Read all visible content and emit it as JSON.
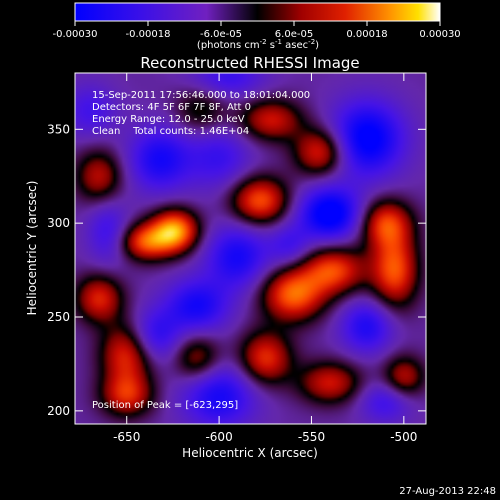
{
  "colorbar": {
    "tick_labels": [
      "-0.00030",
      "-0.00018",
      "-6.0e-05",
      "6.0e-05",
      "0.00018",
      "0.00030"
    ],
    "tick_values": [
      -0.0003,
      -0.00018,
      -6e-05,
      6e-05,
      0.00018,
      0.0003
    ],
    "range": [
      -0.0003,
      0.0003
    ],
    "units_main": "(photons cm",
    "units_sup1": "-2",
    "units_mid": " s",
    "units_sup2": "-1",
    "units_mid2": " asec",
    "units_sup3": "-2",
    "units_end": ")"
  },
  "chart_data": {
    "type": "heatmap",
    "title": "Reconstructed RHESSI Image",
    "xlabel": "Heliocentric X (arcsec)",
    "ylabel": "Heliocentric Y (arcsec)",
    "xlim": [
      -678,
      -488
    ],
    "ylim": [
      193,
      380
    ],
    "x_ticks": [
      -650,
      -600,
      -550,
      -500
    ],
    "x_tick_labels": [
      "-650",
      "-600",
      "-550",
      "-500"
    ],
    "y_ticks": [
      200,
      250,
      300,
      350
    ],
    "y_tick_labels": [
      "200",
      "250",
      "300",
      "350"
    ],
    "annotations": {
      "time": "15-Sep-2011 17:56:46.000 to 18:01:04.000",
      "detectors": "Detectors: 4F 5F 6F 7F 8F, Att 0",
      "energy": "Energy Range: 12.0 - 25.0 keV",
      "clean": "Clean    Total counts: 1.46E+04",
      "peak": "Position of Peak = [-623,295]"
    },
    "peak_position": [
      -623,
      295
    ],
    "bright_sources": [
      {
        "x": -624,
        "y": 296,
        "level": 1.0,
        "sx": 9,
        "sy": 8
      },
      {
        "x": -640,
        "y": 290,
        "level": 0.75,
        "sx": 10,
        "sy": 7
      },
      {
        "x": -578,
        "y": 312,
        "level": 0.8,
        "sx": 11,
        "sy": 9
      },
      {
        "x": -650,
        "y": 230,
        "level": 0.7,
        "sx": 10,
        "sy": 12
      },
      {
        "x": -665,
        "y": 260,
        "level": 0.65,
        "sx": 9,
        "sy": 9
      },
      {
        "x": -560,
        "y": 262,
        "level": 0.85,
        "sx": 12,
        "sy": 10
      },
      {
        "x": -538,
        "y": 275,
        "level": 0.75,
        "sx": 12,
        "sy": 9
      },
      {
        "x": -505,
        "y": 275,
        "level": 0.8,
        "sx": 9,
        "sy": 14
      },
      {
        "x": -510,
        "y": 300,
        "level": 0.7,
        "sx": 10,
        "sy": 9
      },
      {
        "x": -545,
        "y": 338,
        "level": 0.7,
        "sx": 10,
        "sy": 9
      },
      {
        "x": -572,
        "y": 355,
        "level": 0.6,
        "sx": 12,
        "sy": 8
      },
      {
        "x": -665,
        "y": 325,
        "level": 0.55,
        "sx": 9,
        "sy": 10
      },
      {
        "x": -650,
        "y": 208,
        "level": 0.6,
        "sx": 10,
        "sy": 8
      },
      {
        "x": -575,
        "y": 228,
        "level": 0.7,
        "sx": 10,
        "sy": 10
      },
      {
        "x": -540,
        "y": 215,
        "level": 0.6,
        "sx": 12,
        "sy": 8
      },
      {
        "x": -500,
        "y": 218,
        "level": 0.55,
        "sx": 8,
        "sy": 8
      },
      {
        "x": -612,
        "y": 228,
        "level": 0.5,
        "sx": 9,
        "sy": 9
      },
      {
        "x": -610,
        "y": 360,
        "level": 0.35,
        "sx": 10,
        "sy": 9
      }
    ],
    "dark_sources": [
      {
        "x": -540,
        "y": 305,
        "level": -0.85,
        "sx": 12,
        "sy": 10
      },
      {
        "x": -520,
        "y": 345,
        "level": -0.8,
        "sx": 14,
        "sy": 14
      },
      {
        "x": -590,
        "y": 282,
        "level": -0.6,
        "sx": 12,
        "sy": 12
      },
      {
        "x": -632,
        "y": 334,
        "level": -0.6,
        "sx": 12,
        "sy": 12
      },
      {
        "x": -660,
        "y": 295,
        "level": -0.4,
        "sx": 8,
        "sy": 12
      },
      {
        "x": -612,
        "y": 256,
        "level": -0.6,
        "sx": 12,
        "sy": 10
      },
      {
        "x": -635,
        "y": 240,
        "level": -0.5,
        "sx": 10,
        "sy": 10
      },
      {
        "x": -600,
        "y": 208,
        "level": -0.6,
        "sx": 14,
        "sy": 12
      },
      {
        "x": -520,
        "y": 245,
        "level": -0.55,
        "sx": 10,
        "sy": 10
      },
      {
        "x": -510,
        "y": 205,
        "level": -0.4,
        "sx": 10,
        "sy": 8
      },
      {
        "x": -600,
        "y": 335,
        "level": -0.4,
        "sx": 12,
        "sy": 12
      },
      {
        "x": -670,
        "y": 360,
        "level": -0.35,
        "sx": 10,
        "sy": 10
      },
      {
        "x": -595,
        "y": 378,
        "level": -0.4,
        "sx": 14,
        "sy": 8
      },
      {
        "x": -562,
        "y": 288,
        "level": -0.35,
        "sx": 8,
        "sy": 8
      }
    ]
  },
  "footer": {
    "timestamp": "27-Aug-2013 22:48"
  }
}
